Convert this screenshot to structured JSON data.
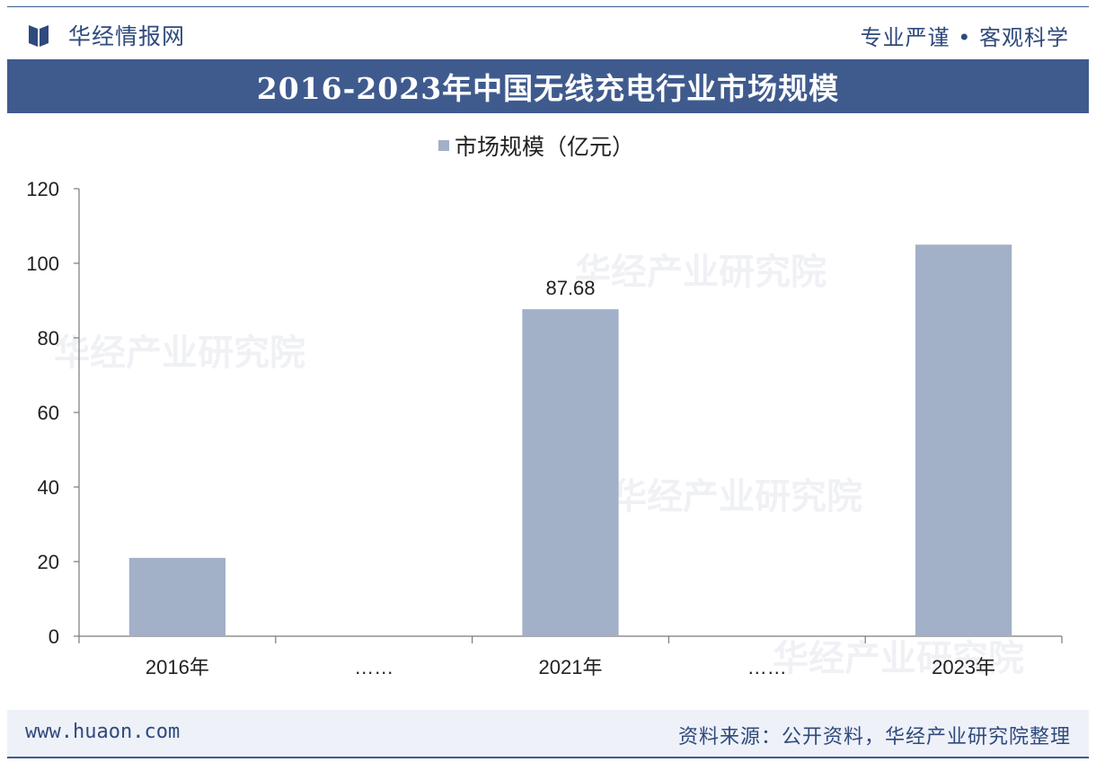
{
  "header": {
    "brand": "华经情报网",
    "slogan": "专业严谨 • 客观科学"
  },
  "title": "2016-2023年中国无线充电行业市场规模",
  "footer": {
    "site": "www.huaon.com",
    "source": "资料来源：公开资料，华经产业研究院整理"
  },
  "watermark": "华经产业研究院",
  "colors": {
    "accent": "#3f5b8e",
    "bar": "#a2b0c8",
    "axis": "#7a7a7a",
    "text": "#222222"
  },
  "chart_data": {
    "type": "bar",
    "categories": [
      "2016年",
      "……",
      "2021年",
      "……",
      "2023年"
    ],
    "series": [
      {
        "name": "市场规模（亿元）",
        "values": [
          21,
          null,
          87.68,
          null,
          105
        ]
      }
    ],
    "data_labels": [
      "",
      "",
      "87.68",
      "",
      ""
    ],
    "ylim": [
      0,
      120
    ],
    "yticks": [
      0,
      20,
      40,
      60,
      80,
      100,
      120
    ],
    "legend": "top-center",
    "grid": false
  }
}
